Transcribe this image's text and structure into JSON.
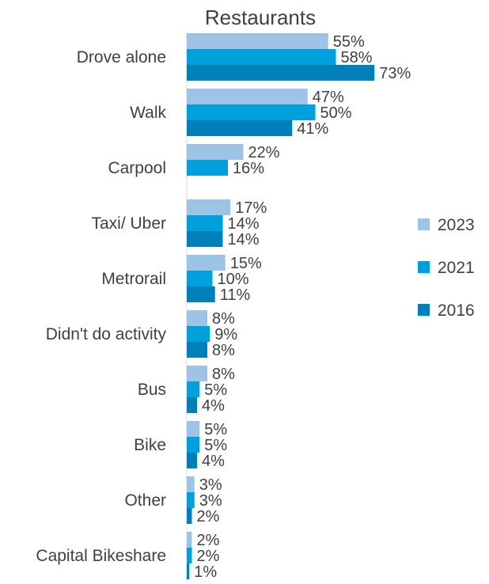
{
  "chart_data": {
    "type": "bar",
    "orientation": "horizontal",
    "title": "Restaurants",
    "categories": [
      "Drove alone",
      "Walk",
      "Carpool",
      "Taxi/ Uber",
      "Metrorail",
      "Didn't do activity",
      "Bus",
      "Bike",
      "Other",
      "Capital Bikeshare"
    ],
    "series": [
      {
        "name": "2023",
        "color": "#9DC3E6",
        "values": [
          55,
          47,
          22,
          17,
          15,
          8,
          8,
          5,
          3,
          2
        ]
      },
      {
        "name": "2021",
        "color": "#00A0DC",
        "values": [
          58,
          50,
          16,
          14,
          10,
          9,
          5,
          5,
          3,
          2
        ]
      },
      {
        "name": "2016",
        "color": "#0080B8",
        "values": [
          73,
          41,
          null,
          14,
          11,
          8,
          4,
          4,
          2,
          1
        ]
      }
    ],
    "value_suffix": "%",
    "legend_position": "right",
    "grid": false
  }
}
